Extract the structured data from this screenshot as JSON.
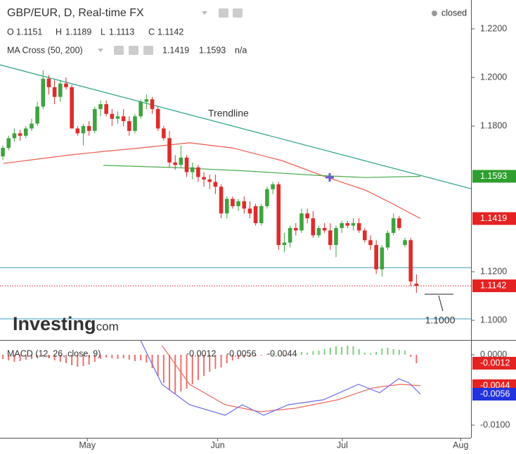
{
  "chart_data": [
    {
      "type": "candlestick",
      "title": "GBP/EUR, D, Real-time FX",
      "status": "closed",
      "ohlc_labels": [
        "O",
        "H",
        "L",
        "C"
      ],
      "indicator_label": "MA Cross (50, 200)",
      "indicator_na": "n/a",
      "watermark": [
        "Investing",
        ".com"
      ],
      "annotation": "1.1000",
      "up_color": "#3fa33f",
      "down_color": "#dd2c2c",
      "x": [
        0,
        1,
        2,
        3,
        4,
        5,
        6,
        7,
        8,
        9,
        10,
        11,
        12,
        13,
        14,
        15,
        16,
        17,
        18,
        19,
        20,
        21,
        22,
        23,
        24,
        25,
        26,
        27,
        28,
        29,
        30,
        31,
        32,
        33,
        34,
        35,
        36,
        37,
        38,
        39,
        40,
        41,
        42,
        43,
        44,
        45,
        46,
        47,
        48,
        49,
        50,
        51,
        52,
        53,
        54,
        55,
        56,
        57,
        58,
        59,
        60,
        61,
        62,
        63,
        64,
        65,
        66,
        67,
        68,
        69,
        70,
        71,
        72
      ],
      "open": [
        1.1675,
        1.171,
        1.175,
        1.177,
        1.176,
        1.179,
        1.181,
        1.188,
        1.1995,
        1.196,
        1.192,
        1.1975,
        1.196,
        1.179,
        1.177,
        1.18,
        1.178,
        1.187,
        1.189,
        1.185,
        1.183,
        1.184,
        1.182,
        1.178,
        1.184,
        1.19,
        1.191,
        1.187,
        1.179,
        1.175,
        1.165,
        1.164,
        1.167,
        1.161,
        1.163,
        1.159,
        1.158,
        1.157,
        1.155,
        1.144,
        1.15,
        1.147,
        1.149,
        1.146,
        1.147,
        1.14,
        1.147,
        1.154,
        1.156,
        1.131,
        1.132,
        1.138,
        1.137,
        1.144,
        1.142,
        1.135,
        1.138,
        1.137,
        1.131,
        1.138,
        1.14,
        1.139,
        1.14,
        1.137,
        1.133,
        1.131,
        1.121,
        1.13,
        1.136,
        1.142,
        1.131,
        1.133,
        1.1151
      ],
      "high": [
        1.172,
        1.176,
        1.179,
        1.1785,
        1.18,
        1.183,
        1.19,
        1.203,
        1.201,
        1.199,
        1.199,
        1.2,
        1.197,
        1.18,
        1.181,
        1.182,
        1.188,
        1.1905,
        1.1905,
        1.187,
        1.186,
        1.187,
        1.184,
        1.185,
        1.191,
        1.193,
        1.192,
        1.188,
        1.18,
        1.178,
        1.168,
        1.172,
        1.168,
        1.165,
        1.164,
        1.161,
        1.16,
        1.16,
        1.156,
        1.151,
        1.151,
        1.15,
        1.151,
        1.149,
        1.148,
        1.148,
        1.155,
        1.157,
        1.157,
        1.136,
        1.139,
        1.14,
        1.146,
        1.146,
        1.145,
        1.139,
        1.14,
        1.14,
        1.139,
        1.141,
        1.141,
        1.142,
        1.142,
        1.138,
        1.135,
        1.133,
        1.131,
        1.137,
        1.144,
        1.143,
        1.134,
        1.134,
        1.1189
      ],
      "low": [
        1.166,
        1.17,
        1.1735,
        1.174,
        1.175,
        1.178,
        1.18,
        1.187,
        1.193,
        1.189,
        1.19,
        1.195,
        1.18,
        1.176,
        1.172,
        1.176,
        1.177,
        1.184,
        1.184,
        1.18,
        1.181,
        1.18,
        1.176,
        1.177,
        1.183,
        1.187,
        1.185,
        1.178,
        1.174,
        1.163,
        1.162,
        1.163,
        1.159,
        1.158,
        1.157,
        1.155,
        1.154,
        1.152,
        1.142,
        1.142,
        1.146,
        1.145,
        1.144,
        1.142,
        1.139,
        1.139,
        1.146,
        1.152,
        1.129,
        1.128,
        1.13,
        1.135,
        1.136,
        1.14,
        1.134,
        1.134,
        1.136,
        1.129,
        1.126,
        1.136,
        1.138,
        1.137,
        1.136,
        1.132,
        1.129,
        1.119,
        1.118,
        1.129,
        1.135,
        1.137,
        1.13,
        1.114,
        1.1113
      ],
      "close": [
        1.171,
        1.175,
        1.177,
        1.176,
        1.179,
        1.181,
        1.188,
        1.1995,
        1.196,
        1.192,
        1.1975,
        1.196,
        1.179,
        1.177,
        1.18,
        1.178,
        1.187,
        1.189,
        1.185,
        1.183,
        1.184,
        1.182,
        1.178,
        1.184,
        1.19,
        1.191,
        1.187,
        1.179,
        1.175,
        1.165,
        1.164,
        1.167,
        1.161,
        1.163,
        1.159,
        1.158,
        1.157,
        1.155,
        1.144,
        1.15,
        1.147,
        1.149,
        1.146,
        1.144,
        1.14,
        1.147,
        1.154,
        1.156,
        1.131,
        1.132,
        1.138,
        1.137,
        1.144,
        1.142,
        1.135,
        1.138,
        1.137,
        1.131,
        1.138,
        1.14,
        1.139,
        1.14,
        1.137,
        1.133,
        1.131,
        1.121,
        1.13,
        1.136,
        1.142,
        1.138,
        1.133,
        1.116,
        1.1142
      ],
      "lines": [
        {
          "color": "#ee5a4c",
          "x": [
            0.1,
            11.7,
            17.9,
            24,
            32.5,
            39.9,
            48.5,
            55.8,
            63.1,
            68,
            72.7
          ],
          "values": [
            1.1646,
            1.1681,
            1.1696,
            1.171,
            1.1731,
            1.171,
            1.1658,
            1.1594,
            1.1536,
            1.1478,
            1.1419
          ]
        },
        {
          "color": "#4caa4c",
          "x": [
            17.5,
            30.1,
            42.3,
            54.6,
            63.1,
            72.7
          ],
          "values": [
            1.1638,
            1.1629,
            1.1615,
            1.1597,
            1.1588,
            1.1593
          ]
        }
      ],
      "trendline": {
        "label": "Trendline",
        "color": "#26a085",
        "x": [
          -0.5,
          81.5
        ],
        "values": [
          1.2052,
          1.1542
        ]
      },
      "hlines": [
        {
          "value": 1.1217,
          "color": "#3a9fc4"
        },
        {
          "value": 1.1006,
          "color": "#3a9fc4"
        }
      ],
      "price_line_color": "#d02020",
      "xlim": [
        -0.5,
        81.5
      ],
      "ylim": [
        1.0919,
        1.2319
      ],
      "xticks": [
        {
          "value": 14.7,
          "label": "May"
        },
        {
          "value": 37.4,
          "label": "Jun"
        },
        {
          "value": 59.1,
          "label": "Jul"
        },
        {
          "value": 79.7,
          "label": "Aug"
        }
      ],
      "yticks": [
        {
          "value": 1.22,
          "label": "1.2200"
        },
        {
          "value": 1.2,
          "label": "1.2000"
        },
        {
          "value": 1.18,
          "label": "1.1800"
        },
        {
          "value": 1.12,
          "label": "1.1200"
        },
        {
          "value": 1.1,
          "label": "1.1000"
        }
      ]
    },
    {
      "type": "macd",
      "title": "MACD (12, 26, close, 9)",
      "hist_up_color": "#7fcf7f",
      "hist_down_color": "#f26d6d",
      "histogram": [
        -0.0006,
        -0.0008,
        -0.001,
        -0.0009,
        -0.0007,
        -0.0006,
        -0.0004,
        -0.0002,
        -0.0005,
        -0.0008,
        -0.001,
        -0.0012,
        -0.0015,
        -0.0017,
        -0.0016,
        -0.0014,
        -0.001,
        -0.0006,
        -0.0004,
        -0.0005,
        -0.0006,
        -0.0005,
        -0.0007,
        -0.0009,
        -0.0008,
        -0.0011,
        -0.0019,
        -0.003,
        -0.004,
        -0.005,
        -0.0055,
        -0.0052,
        -0.0048,
        -0.0042,
        -0.0036,
        -0.003,
        -0.0024,
        -0.002,
        -0.0018,
        -0.0012,
        -0.0008,
        -0.0006,
        -0.0004,
        -0.0003,
        -0.0002,
        -0.0001,
        0.0001,
        0.0002,
        0.0001,
        -0.0001,
        0.0001,
        0.0002,
        0.0004,
        0.0003,
        0.0005,
        0.0006,
        0.0008,
        0.001,
        0.0012,
        0.0011,
        0.0013,
        0.0012,
        0.0008,
        0.0003,
        0.0002,
        0.0004,
        0.0009,
        0.001,
        0.0008,
        0.0007,
        0.0006,
        -0.0003,
        -0.0012
      ],
      "macd": {
        "color": "#6a6af0",
        "x": [
          24,
          27.7,
          32.5,
          38.7,
          41.7,
          45.4,
          49.7,
          55.8,
          61.9,
          65.6,
          68.9,
          70.7,
          72.7
        ],
        "values": [
          0.002,
          -0.0042,
          -0.0071,
          -0.0086,
          -0.0071,
          -0.0086,
          -0.0071,
          -0.0064,
          -0.0042,
          -0.0054,
          -0.0034,
          -0.004,
          -0.0056
        ]
      },
      "signal": {
        "color": "#f06a60",
        "x": [
          27.7,
          32.5,
          38.7,
          44.8,
          50.9,
          58.3,
          64.4,
          69.3,
          72.7
        ],
        "values": [
          0.0013,
          -0.0042,
          -0.0071,
          -0.0081,
          -0.0076,
          -0.0064,
          -0.0047,
          -0.0042,
          -0.0044
        ]
      },
      "ylim": [
        -0.0118,
        0.002
      ],
      "yticks": [
        {
          "value": 0,
          "label": "0.0000"
        },
        {
          "value": -0.01,
          "label": "-0.0100"
        }
      ]
    }
  ]
}
